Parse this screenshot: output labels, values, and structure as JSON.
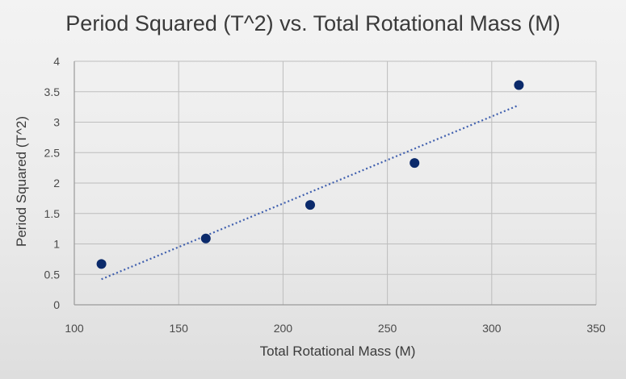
{
  "chart_data": {
    "type": "scatter",
    "title": "Period Squared (T^2) vs. Total Rotational Mass (M)",
    "xlabel": "Total Rotational Mass (M)",
    "ylabel": "Period Squared (T^2)",
    "xlim": [
      100,
      350
    ],
    "ylim": [
      0,
      4
    ],
    "x_ticks": [
      "100",
      "150",
      "200",
      "250",
      "300",
      "350"
    ],
    "y_ticks": [
      "0",
      "0.5",
      "1",
      "1.5",
      "2",
      "2.5",
      "3",
      "3.5",
      "4"
    ],
    "x": [
      113,
      163,
      213,
      263,
      313
    ],
    "y": [
      0.67,
      1.09,
      1.64,
      2.33,
      3.61
    ],
    "trendline": {
      "type": "linear",
      "style": "dotted",
      "x": [
        113,
        313
      ],
      "y": [
        0.42,
        3.28
      ]
    },
    "grid": true,
    "legend": "none",
    "colors": {
      "marker": "#0b2a6b",
      "trendline": "#3f5fae",
      "grid": "#bdbdbd",
      "axis": "#9a9a9a"
    }
  }
}
